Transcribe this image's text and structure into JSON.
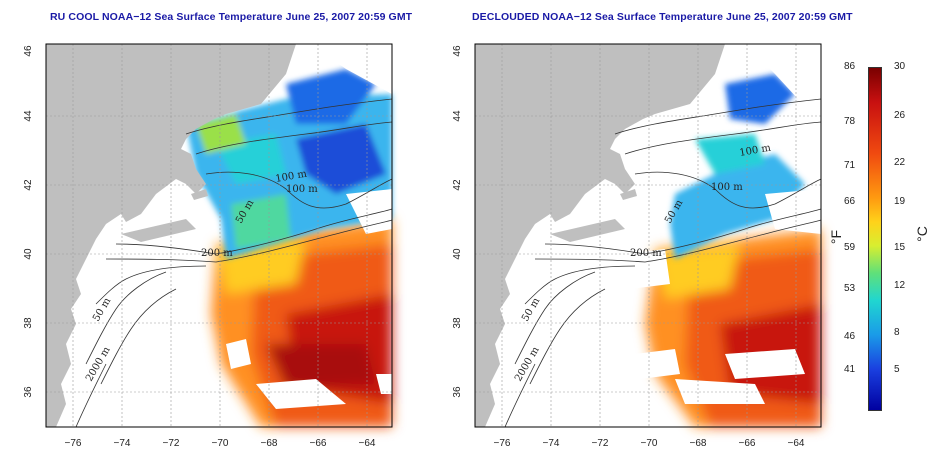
{
  "titles": {
    "left": "RU COOL NOAA−12 Sea Surface Temperature June 25, 2007 20:59 GMT",
    "right": "DECLOUDED NOAA−12 Sea Surface Temperature June 25, 2007 20:59 GMT"
  },
  "axes": {
    "x_ticks": [
      "−76",
      "−74",
      "−72",
      "−70",
      "−68",
      "−66",
      "−64"
    ],
    "y_ticks": [
      "46",
      "44",
      "42",
      "40",
      "38",
      "36"
    ]
  },
  "contour_labels_left": [
    "50 m",
    "100 m",
    "100 m",
    "200 m",
    "50 m",
    "2000 m",
    "50 m"
  ],
  "contour_labels_right": [
    "100 m",
    "100 m",
    "50 m",
    "200 m",
    "50 m",
    "2000 m"
  ],
  "colorbar": {
    "fahrenheit_labels": [
      "86",
      "78",
      "71",
      "66",
      "59",
      "53",
      "46",
      "41"
    ],
    "celsius_labels": [
      "30",
      "26",
      "22",
      "19",
      "15",
      "12",
      "8",
      "5"
    ],
    "fahrenheit_unit": "°F",
    "celsius_unit": "°C"
  },
  "colors": {
    "land": "#bfbfbf",
    "cloud": "#ffffff",
    "title": "#1a1aa6"
  }
}
